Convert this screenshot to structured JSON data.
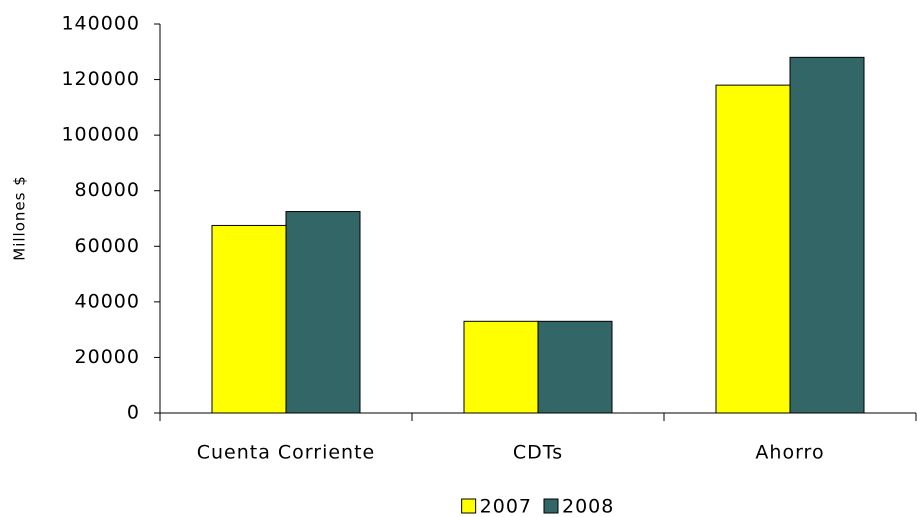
{
  "chart_data": {
    "type": "bar",
    "y_label": "Millones $",
    "categories": [
      "Cuenta Corriente",
      "CDTs",
      "Ahorro"
    ],
    "series": [
      {
        "name": "2007",
        "color": "#ffff00",
        "values": [
          67500,
          33000,
          118000
        ]
      },
      {
        "name": "2008",
        "color": "#336666",
        "values": [
          72500,
          33000,
          128000
        ]
      }
    ],
    "ylim": [
      0,
      140000
    ],
    "yticks": [
      0,
      20000,
      40000,
      60000,
      80000,
      100000,
      120000,
      140000
    ],
    "legend": "bottom"
  }
}
